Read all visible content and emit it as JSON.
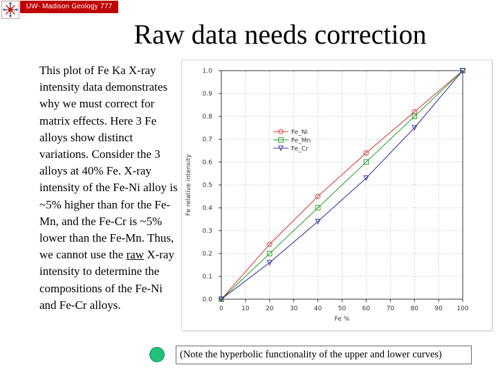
{
  "header": {
    "course_label": "UW- Madison Geology  777"
  },
  "title": "Raw data needs correction",
  "body": {
    "text_before": "This plot of Fe Ka X-ray intensity data demonstrates why we must correct for matrix effects. Here 3 Fe alloys show distinct variations. Consider the 3 alloys at 40% Fe. X-ray intensity of the Fe-Ni alloy is ~5% higher than for the Fe-Mn, and the Fe-Cr is ~5% lower than the Fe-Mn. Thus, we cannot use the ",
    "underlined_word": "raw",
    "text_after": " X-ray intensity to determine the compositions of the Fe-Ni and Fe-Cr alloys."
  },
  "note": "(Note the hyperbolic functionality of the upper and lower curves)",
  "colors": {
    "fe_ni": "#d84040",
    "fe_mn": "#2fa32f",
    "fe_cr": "#3a3a9e",
    "header_bar": "#c00000",
    "dot": "#21c17b"
  },
  "chart_data": {
    "type": "line",
    "title": "",
    "xlabel": "Fe %",
    "ylabel": "Fe relative intensity",
    "xlim": [
      0,
      100
    ],
    "ylim": [
      0,
      1.0
    ],
    "x_ticks": [
      0,
      10,
      20,
      30,
      40,
      50,
      60,
      70,
      80,
      90,
      100
    ],
    "y_ticks": [
      "0.0",
      "0.1",
      "0.2",
      "0.3",
      "0.4",
      "0.5",
      "0.6",
      "0.7",
      "0.8",
      "0.9",
      "1.0"
    ],
    "grid": true,
    "legend_position": "left, upper-middle",
    "x": [
      0,
      20,
      40,
      60,
      80,
      100
    ],
    "series": [
      {
        "name": "Fe_Ni",
        "marker": "circle",
        "color": "#d84040",
        "values": [
          0,
          0.24,
          0.45,
          0.64,
          0.82,
          1.0
        ]
      },
      {
        "name": "Fe_Mn",
        "marker": "square",
        "color": "#2fa32f",
        "values": [
          0,
          0.2,
          0.4,
          0.6,
          0.8,
          1.0
        ]
      },
      {
        "name": "Fe_Cr",
        "marker": "triangle-down",
        "color": "#3a3a9e",
        "values": [
          0,
          0.16,
          0.34,
          0.53,
          0.75,
          1.0
        ]
      }
    ]
  }
}
